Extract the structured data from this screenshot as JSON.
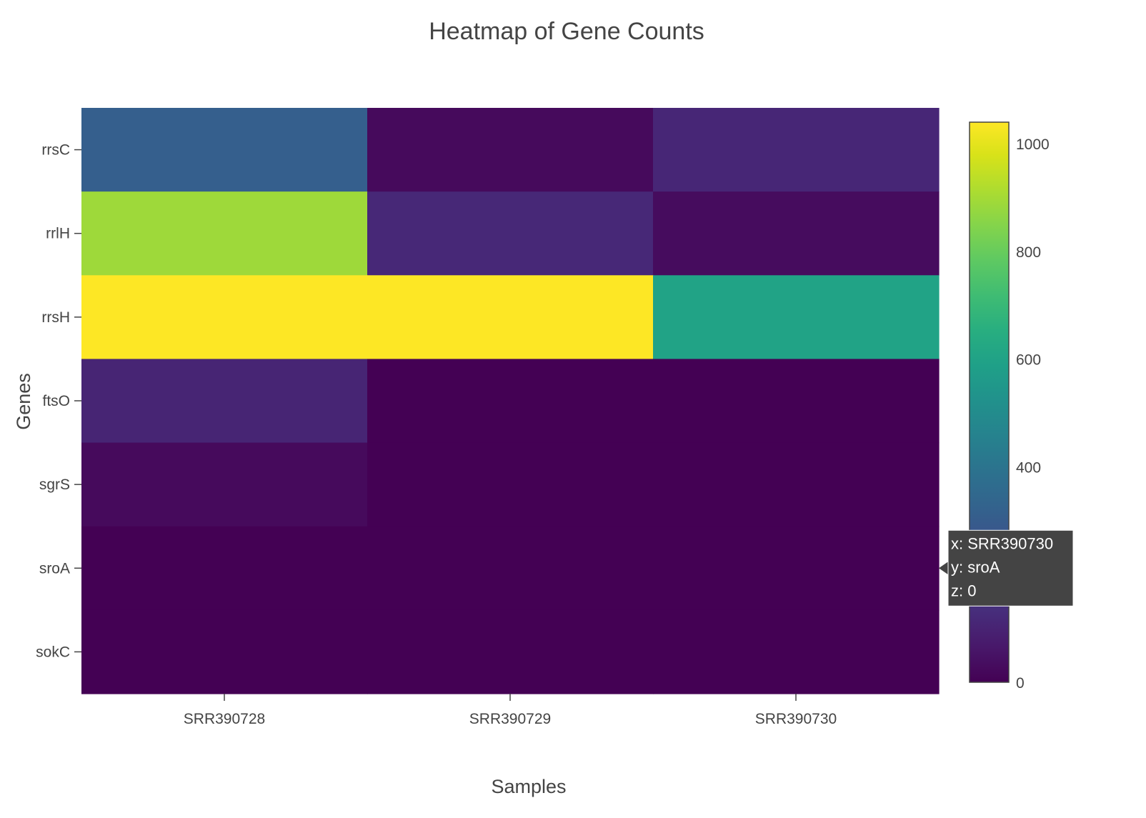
{
  "chart_data": {
    "type": "heatmap",
    "title": "Heatmap of Gene Counts",
    "xlabel": "Samples",
    "ylabel": "Genes",
    "x": [
      "SRR390728",
      "SRR390729",
      "SRR390730"
    ],
    "y": [
      "rrsC",
      "rrlH",
      "rrsH",
      "ftsO",
      "sgrS",
      "sroA",
      "sokC"
    ],
    "z": [
      [
        310,
        25,
        110
      ],
      [
        890,
        115,
        30
      ],
      [
        1040,
        1040,
        600
      ],
      [
        105,
        0,
        0
      ],
      [
        25,
        0,
        0
      ],
      [
        0,
        0,
        0
      ],
      [
        0,
        0,
        0
      ]
    ],
    "zrange": [
      0,
      1040
    ],
    "colorscale": "Viridis",
    "colorbar_ticks": [
      0,
      200,
      400,
      600,
      800,
      1000
    ],
    "colorbar_tick_labels": [
      "0",
      "",
      "400",
      "600",
      "800",
      "1000"
    ],
    "tooltip": {
      "lines": [
        "x: SRR390730",
        "y: sroA",
        "z: 0"
      ],
      "target_x": "SRR390730",
      "target_y": "sroA"
    }
  }
}
